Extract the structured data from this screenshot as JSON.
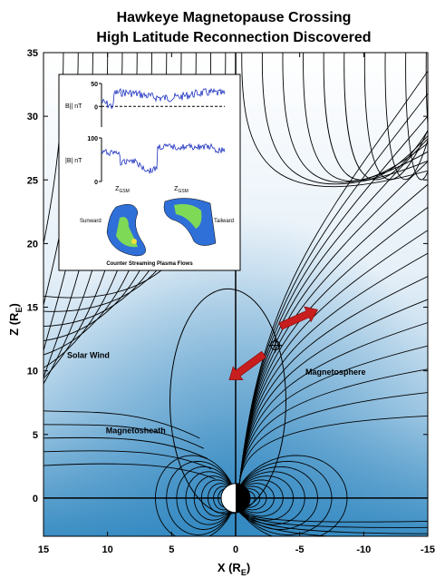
{
  "chart_data": {
    "type": "field-map",
    "title": [
      "Hawkeye Magnetopause Crossing",
      "High Latitude Reconnection Discovered"
    ],
    "xlabel": [
      "X (R",
      "E",
      ")"
    ],
    "ylabel": [
      "Z (R",
      "E",
      ")"
    ],
    "xlim": [
      15,
      -15
    ],
    "ylim": [
      -3,
      35
    ],
    "xticks": [
      15,
      10,
      5,
      0,
      -5,
      -10,
      -15
    ],
    "yticks": [
      0,
      5,
      10,
      15,
      20,
      25,
      30,
      35
    ],
    "annotations": [
      "Solar Wind",
      "Magnetosheath",
      "Magnetosphere"
    ],
    "inset": {
      "panel1": {
        "label": "B|| nT",
        "ylim": [
          -45,
          50
        ],
        "yticks": [
          0,
          50
        ]
      },
      "panel2": {
        "label": "|B| nT",
        "ylim": [
          0,
          100
        ],
        "yticks": [
          0,
          100
        ]
      },
      "zgsm": [
        "Z",
        "GSM"
      ],
      "sunward": "Sunward",
      "tailward": "Tailward",
      "caption": "Counter Streaming Plasma Flows"
    }
  }
}
